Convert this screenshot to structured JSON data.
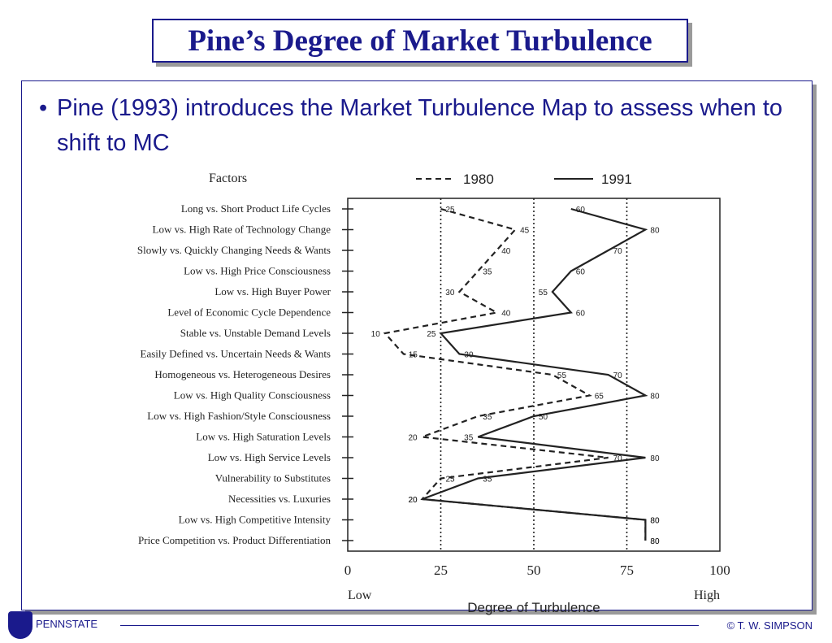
{
  "slide": {
    "title": "Pine’s Degree of Market Turbulence",
    "bullet_mark": "•",
    "bullet": "Pine (1993) introduces the Market Turbulence Map to assess when to shift to MC"
  },
  "footer": {
    "logo_text": "PENNSTATE",
    "copyright": "© T. W. SIMPSON"
  },
  "chart_data": {
    "type": "line",
    "title": "Factors",
    "xlabel": "Degree of Turbulence",
    "x_low_label": "Low",
    "x_high_label": "High",
    "xlim": [
      0,
      100
    ],
    "x_ticks": [
      0,
      25,
      50,
      75,
      100
    ],
    "reference_lines": [
      25,
      50,
      75
    ],
    "legend_position": "top",
    "categories": [
      "Long vs. Short Product Life Cycles",
      "Low vs. High Rate of Technology Change",
      "Slowly vs. Quickly Changing Needs & Wants",
      "Low vs. High Price Consciousness",
      "Low vs. High Buyer Power",
      "Level of Economic Cycle Dependence",
      "Stable vs. Unstable Demand Levels",
      "Easily Defined vs. Uncertain Needs & Wants",
      "Homogeneous vs. Heterogeneous Desires",
      "Low vs. High Quality Consciousness",
      "Low vs. High Fashion/Style Consciousness",
      "Low vs. High Saturation Levels",
      "Low vs. High Service Levels",
      "Vulnerability to Substitutes",
      "Necessities vs. Luxuries",
      "Low vs. High Competitive Intensity",
      "Price Competition vs. Product Differentiation"
    ],
    "series": [
      {
        "name": "1980",
        "style": "dashed",
        "values": [
          25,
          45,
          40,
          35,
          30,
          40,
          10,
          15,
          55,
          65,
          35,
          20,
          70,
          25,
          20,
          80,
          80
        ]
      },
      {
        "name": "1991",
        "style": "solid",
        "values": [
          60,
          80,
          70,
          60,
          55,
          60,
          25,
          30,
          70,
          80,
          50,
          35,
          80,
          35,
          20,
          80,
          80
        ]
      }
    ],
    "colors": {
      "lines": "#222222",
      "axis": "#222222"
    }
  }
}
